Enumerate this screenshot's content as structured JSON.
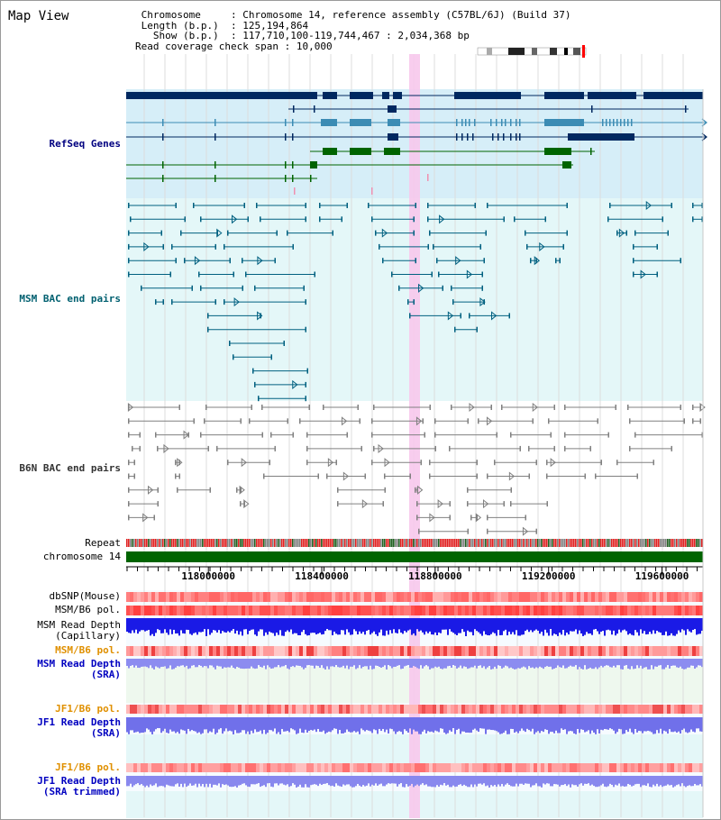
{
  "view": {
    "title": "Map View",
    "info": [
      {
        "label": " Chromosome     ",
        "value": "Chromosome 14, reference assembly (C57BL/6J) (Build 37)"
      },
      {
        "label": " Length (b.p.)  ",
        "value": "125,194,864"
      },
      {
        "label": "   Show (b.p.)  ",
        "value": "117,710,100-119,744,467 : 2,034,368 bp"
      },
      {
        "label": "Read coverage check span",
        "value": "10,000"
      }
    ]
  },
  "tracks": [
    {
      "id": "refseq",
      "label": "RefSeq Genes",
      "color": "#000080"
    },
    {
      "id": "msm_bac",
      "label": "MSM BAC end pairs",
      "color": "#006070"
    },
    {
      "id": "b6n_bac",
      "label": "B6N BAC end pairs",
      "color": "#333333"
    },
    {
      "id": "repeat",
      "label": "Repeat",
      "color": "#000000"
    },
    {
      "id": "chromosome",
      "label": "chromosome 14",
      "color": "#000000"
    },
    {
      "id": "dbsnp",
      "label": "dbSNP(Mouse)",
      "color": "#000000"
    },
    {
      "id": "msm_pol",
      "label": "MSM/B6 pol.",
      "color": "#000000"
    },
    {
      "id": "msm_depth_cap",
      "label": "MSM Read Depth\n(Capillary)",
      "color": "#000000"
    },
    {
      "id": "msm_pol_sra",
      "label": "MSM/B6 pol.",
      "color": "#e09000"
    },
    {
      "id": "msm_depth_sra",
      "label": "MSM Read Depth\n(SRA)",
      "color": "#0000c0"
    },
    {
      "id": "jf1_pol",
      "label": "JF1/B6 pol.",
      "color": "#e09000"
    },
    {
      "id": "jf1_depth",
      "label": "JF1 Read Depth\n(SRA)",
      "color": "#0000c0"
    },
    {
      "id": "jf1_pol2",
      "label": "JF1/B6 pol.",
      "color": "#e09000"
    },
    {
      "id": "jf1_depth_trim",
      "label": "JF1 Read Depth\n(SRA trimmed)",
      "color": "#0000c0"
    }
  ],
  "axis": {
    "ticks": [
      "118000000",
      "118400000",
      "118800000",
      "119200000",
      "119600000"
    ],
    "tick_values": [
      118000000,
      118400000,
      118800000,
      119200000,
      119600000
    ],
    "range": [
      117710100,
      119744467
    ]
  },
  "colors": {
    "refseq_bg": "#d6eef8",
    "msm_bg": "#e4f7f8",
    "b6n_bg": "#ffffff",
    "highlight": "#f7c8ec",
    "gene_dark": "#002860",
    "gene_teal": "#3c8cb4",
    "gene_green": "#006400",
    "chromosome_bar": "#006400",
    "msm_line": "#006080",
    "b6n_line": "#808080"
  }
}
